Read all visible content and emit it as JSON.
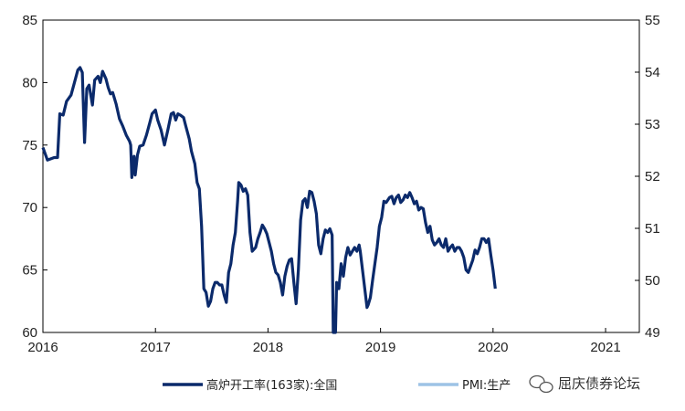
{
  "chart_data": {
    "type": "line",
    "title": "",
    "xlabel": "",
    "ylabel": "",
    "x_ticks": [
      "2016",
      "2017",
      "2018",
      "2019",
      "2020",
      "2021"
    ],
    "x_range": [
      2016.0,
      2021.3
    ],
    "y_left_ticks": [
      "60",
      "65",
      "70",
      "75",
      "80",
      "85"
    ],
    "y_left_range": [
      60,
      85
    ],
    "y_right_ticks": [
      "49",
      "50",
      "51",
      "52",
      "53",
      "54",
      "55"
    ],
    "y_right_range": [
      49,
      55
    ],
    "grid": false,
    "legend_position": "bottom",
    "series": [
      {
        "name": "高炉开工率(163家):全国",
        "axis": "left",
        "color": "#0b2a6b",
        "points": [
          [
            2016.0,
            74.8
          ],
          [
            2016.02,
            74.3
          ],
          [
            2016.04,
            73.8
          ],
          [
            2016.07,
            73.9
          ],
          [
            2016.1,
            74.0
          ],
          [
            2016.13,
            74.0
          ],
          [
            2016.15,
            77.5
          ],
          [
            2016.18,
            77.4
          ],
          [
            2016.21,
            78.5
          ],
          [
            2016.25,
            79.0
          ],
          [
            2016.28,
            80.0
          ],
          [
            2016.31,
            81.0
          ],
          [
            2016.33,
            81.2
          ],
          [
            2016.35,
            80.8
          ],
          [
            2016.37,
            75.2
          ],
          [
            2016.39,
            79.5
          ],
          [
            2016.41,
            79.8
          ],
          [
            2016.44,
            78.2
          ],
          [
            2016.46,
            80.2
          ],
          [
            2016.49,
            80.5
          ],
          [
            2016.51,
            80.0
          ],
          [
            2016.53,
            80.9
          ],
          [
            2016.56,
            80.3
          ],
          [
            2016.58,
            79.6
          ],
          [
            2016.6,
            79.1
          ],
          [
            2016.62,
            79.2
          ],
          [
            2016.65,
            78.3
          ],
          [
            2016.68,
            77.1
          ],
          [
            2016.71,
            76.5
          ],
          [
            2016.74,
            75.8
          ],
          [
            2016.77,
            75.3
          ],
          [
            2016.78,
            75.0
          ],
          [
            2016.79,
            72.4
          ],
          [
            2016.81,
            74.1
          ],
          [
            2016.82,
            72.6
          ],
          [
            2016.84,
            74.2
          ],
          [
            2016.86,
            74.9
          ],
          [
            2016.89,
            75.0
          ],
          [
            2016.92,
            75.8
          ],
          [
            2016.95,
            76.8
          ],
          [
            2016.97,
            77.5
          ],
          [
            2017.0,
            77.8
          ],
          [
            2017.02,
            77.0
          ],
          [
            2017.05,
            76.2
          ],
          [
            2017.08,
            75.0
          ],
          [
            2017.11,
            76.2
          ],
          [
            2017.14,
            77.5
          ],
          [
            2017.16,
            77.6
          ],
          [
            2017.18,
            77.0
          ],
          [
            2017.2,
            77.5
          ],
          [
            2017.22,
            77.4
          ],
          [
            2017.25,
            77.2
          ],
          [
            2017.27,
            76.5
          ],
          [
            2017.3,
            75.5
          ],
          [
            2017.32,
            74.5
          ],
          [
            2017.35,
            73.5
          ],
          [
            2017.37,
            72.0
          ],
          [
            2017.39,
            71.5
          ],
          [
            2017.41,
            68.5
          ],
          [
            2017.43,
            63.5
          ],
          [
            2017.45,
            63.2
          ],
          [
            2017.47,
            62.1
          ],
          [
            2017.49,
            62.5
          ],
          [
            2017.51,
            63.5
          ],
          [
            2017.53,
            64.0
          ],
          [
            2017.55,
            64.0
          ],
          [
            2017.57,
            63.8
          ],
          [
            2017.59,
            63.8
          ],
          [
            2017.61,
            63.0
          ],
          [
            2017.63,
            62.4
          ],
          [
            2017.65,
            64.8
          ],
          [
            2017.67,
            65.5
          ],
          [
            2017.69,
            67.0
          ],
          [
            2017.71,
            68.0
          ],
          [
            2017.73,
            70.5
          ],
          [
            2017.74,
            72.0
          ],
          [
            2017.76,
            71.8
          ],
          [
            2017.78,
            71.3
          ],
          [
            2017.8,
            71.5
          ],
          [
            2017.82,
            71.0
          ],
          [
            2017.84,
            68.0
          ],
          [
            2017.86,
            66.5
          ],
          [
            2017.89,
            66.8
          ],
          [
            2017.91,
            67.5
          ],
          [
            2017.93,
            68.0
          ],
          [
            2017.95,
            68.6
          ],
          [
            2017.97,
            68.3
          ],
          [
            2017.99,
            67.9
          ],
          [
            2018.01,
            67.2
          ],
          [
            2018.03,
            66.5
          ],
          [
            2018.05,
            65.5
          ],
          [
            2018.07,
            64.8
          ],
          [
            2018.09,
            64.6
          ],
          [
            2018.11,
            64.0
          ],
          [
            2018.13,
            63.0
          ],
          [
            2018.15,
            64.5
          ],
          [
            2018.17,
            65.3
          ],
          [
            2018.19,
            65.8
          ],
          [
            2018.21,
            65.9
          ],
          [
            2018.23,
            64.0
          ],
          [
            2018.25,
            62.3
          ],
          [
            2018.27,
            65.0
          ],
          [
            2018.29,
            69.0
          ],
          [
            2018.31,
            70.5
          ],
          [
            2018.33,
            70.7
          ],
          [
            2018.35,
            70.0
          ],
          [
            2018.37,
            71.3
          ],
          [
            2018.39,
            71.2
          ],
          [
            2018.41,
            70.5
          ],
          [
            2018.43,
            69.5
          ],
          [
            2018.45,
            67.0
          ],
          [
            2018.47,
            66.3
          ],
          [
            2018.49,
            67.5
          ],
          [
            2018.51,
            68.2
          ],
          [
            2018.53,
            68.0
          ],
          [
            2018.55,
            68.3
          ],
          [
            2018.57,
            67.8
          ],
          [
            2018.58,
            60.0
          ],
          [
            2018.6,
            60.0
          ],
          [
            2018.61,
            64.0
          ],
          [
            2018.63,
            63.5
          ],
          [
            2018.65,
            65.5
          ],
          [
            2018.67,
            64.5
          ],
          [
            2018.69,
            66.0
          ],
          [
            2018.71,
            66.8
          ],
          [
            2018.73,
            66.2
          ],
          [
            2018.75,
            66.5
          ],
          [
            2018.77,
            66.8
          ],
          [
            2018.79,
            66.5
          ],
          [
            2018.81,
            67.0
          ],
          [
            2018.82,
            66.5
          ],
          [
            2018.84,
            65.0
          ],
          [
            2018.86,
            63.5
          ],
          [
            2018.88,
            62.0
          ],
          [
            2018.89,
            62.2
          ],
          [
            2018.91,
            62.8
          ],
          [
            2018.93,
            64.2
          ],
          [
            2018.95,
            65.5
          ],
          [
            2018.97,
            66.8
          ],
          [
            2018.99,
            68.5
          ],
          [
            2019.01,
            69.2
          ],
          [
            2019.03,
            70.5
          ],
          [
            2019.05,
            70.4
          ],
          [
            2019.08,
            70.8
          ],
          [
            2019.1,
            70.9
          ],
          [
            2019.12,
            70.3
          ],
          [
            2019.14,
            70.8
          ],
          [
            2019.16,
            71.0
          ],
          [
            2019.18,
            70.4
          ],
          [
            2019.2,
            70.6
          ],
          [
            2019.22,
            71.0
          ],
          [
            2019.24,
            70.8
          ],
          [
            2019.26,
            71.2
          ],
          [
            2019.28,
            70.8
          ],
          [
            2019.3,
            70.3
          ],
          [
            2019.32,
            70.5
          ],
          [
            2019.34,
            69.8
          ],
          [
            2019.36,
            70.0
          ],
          [
            2019.38,
            69.9
          ],
          [
            2019.4,
            68.8
          ],
          [
            2019.42,
            68.0
          ],
          [
            2019.44,
            68.5
          ],
          [
            2019.46,
            67.4
          ],
          [
            2019.48,
            67.0
          ],
          [
            2019.5,
            67.2
          ],
          [
            2019.52,
            67.5
          ],
          [
            2019.54,
            67.0
          ],
          [
            2019.56,
            66.8
          ],
          [
            2019.58,
            67.5
          ],
          [
            2019.6,
            66.5
          ],
          [
            2019.62,
            66.8
          ],
          [
            2019.64,
            67.0
          ],
          [
            2019.66,
            66.5
          ],
          [
            2019.68,
            66.8
          ],
          [
            2019.7,
            66.8
          ],
          [
            2019.72,
            66.5
          ],
          [
            2019.74,
            66.0
          ],
          [
            2019.76,
            65.0
          ],
          [
            2019.78,
            64.8
          ],
          [
            2019.8,
            65.3
          ],
          [
            2019.82,
            65.8
          ],
          [
            2019.84,
            66.6
          ],
          [
            2019.86,
            66.3
          ],
          [
            2019.88,
            66.8
          ],
          [
            2019.9,
            67.5
          ],
          [
            2019.92,
            67.5
          ],
          [
            2019.94,
            67.2
          ],
          [
            2019.96,
            67.5
          ],
          [
            2019.98,
            66.2
          ],
          [
            2020.0,
            65.0
          ],
          [
            2020.02,
            63.5
          ]
        ]
      },
      {
        "name": "PMI:生产",
        "axis": "right",
        "color": "#9dc3e6",
        "points": []
      }
    ]
  },
  "legend": {
    "items": [
      {
        "label": "高炉开工率(163家):全国",
        "color": "#0b2a6b"
      },
      {
        "label": "PMI:生产",
        "color": "#9dc3e6"
      }
    ]
  },
  "watermark": {
    "text": "屈庆债券论坛"
  }
}
